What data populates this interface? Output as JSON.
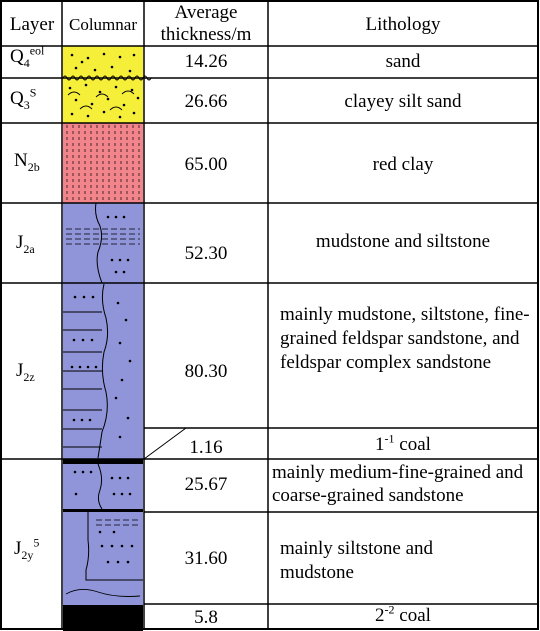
{
  "colors": {
    "sand": "#f5ef3a",
    "clay": "#f2858c",
    "rock": "#8f95d8",
    "coal": "#000000",
    "grid": "#000000"
  },
  "header": {
    "layer": "Layer",
    "columnar": "Columnar",
    "thickness_line1": "Average",
    "thickness_line2": "thickness/m",
    "lithology": "Lithology"
  },
  "rows": [
    {
      "layer_base": "Q",
      "layer_sub": "4",
      "layer_sup": "eol",
      "thickness": "14.26",
      "lithology": "sand"
    },
    {
      "layer_base": "Q",
      "layer_sub": "3",
      "layer_sup": "S",
      "thickness": "26.66",
      "lithology": "clayey silt sand"
    },
    {
      "layer_base": "N",
      "layer_sub": "2b",
      "layer_sup": "",
      "thickness": "65.00",
      "lithology": "red clay"
    },
    {
      "layer_base": "J",
      "layer_sub": "2a",
      "layer_sup": "",
      "thickness": "52.30",
      "lithology": "mudstone and siltstone"
    },
    {
      "layer_base": "J",
      "layer_sub": "2z",
      "layer_sup": "",
      "thickness": "80.30",
      "lithology": "mainly mudstone, siltstone, fine-grained feldspar sandstone, and feldspar complex sandstone"
    },
    {
      "layer_base": "",
      "layer_sub": "",
      "layer_sup": "",
      "thickness": "1.16",
      "lithology_base": "1",
      "lithology_sup": "-1",
      "lithology_rest": " coal"
    },
    {
      "layer_base": "J",
      "layer_sub": "2y",
      "layer_sup": "5",
      "thickness": "25.67",
      "lithology": "mainly medium-fine-grained and coarse-grained sandstone"
    },
    {
      "layer_base": "",
      "layer_sub": "",
      "layer_sup": "",
      "thickness": "31.60",
      "lithology": "mainly siltstone and mudstone"
    },
    {
      "layer_base": "",
      "layer_sub": "",
      "layer_sup": "",
      "thickness": "5.8",
      "lithology_base": "2",
      "lithology_sup": "-2",
      "lithology_rest": " coal"
    }
  ]
}
